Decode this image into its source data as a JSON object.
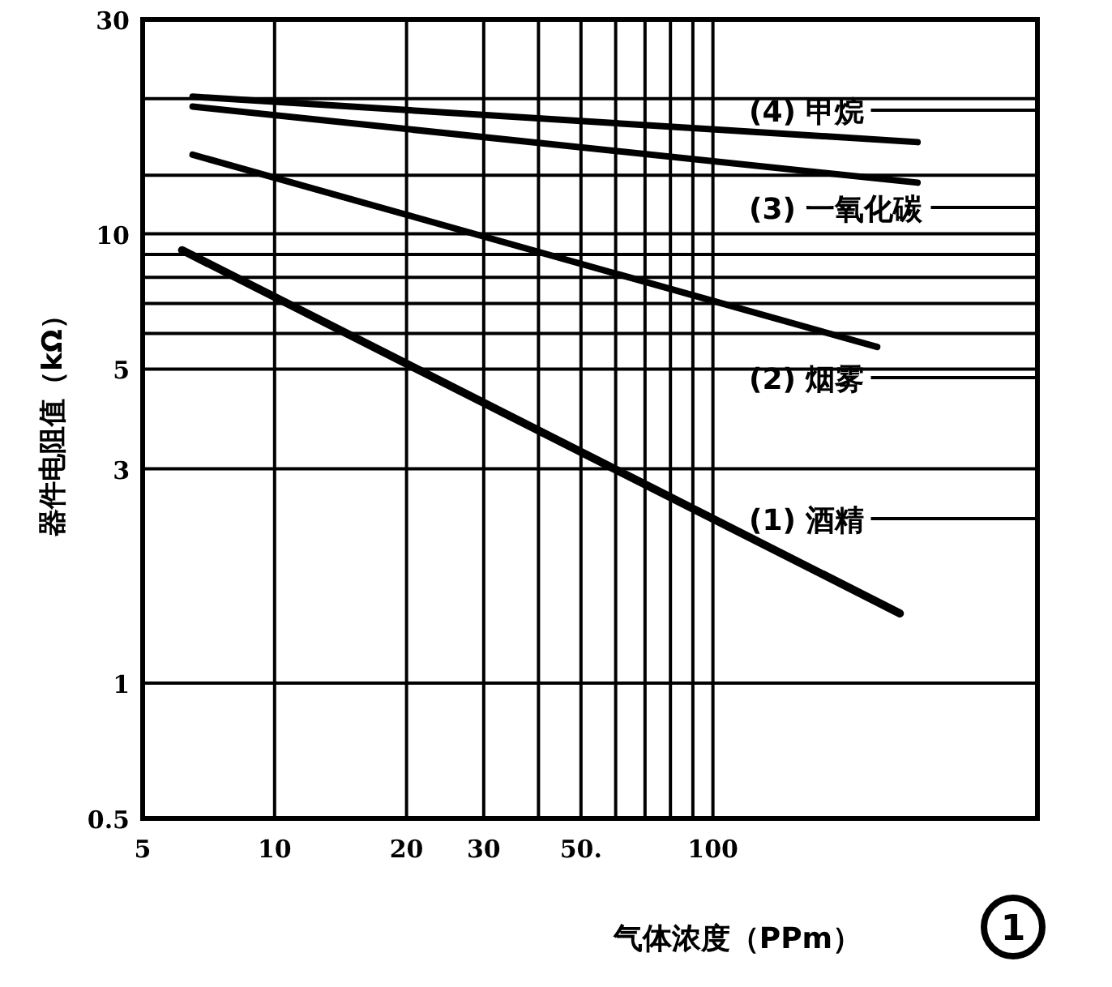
{
  "chart_data": {
    "type": "line",
    "xlabel": "气体浓度（PPm）",
    "ylabel": "器件电阻值（kΩ）",
    "log": "xy",
    "xlim": [
      5,
      550
    ],
    "ylim": [
      0.5,
      30
    ],
    "xticks": [
      5,
      10,
      20,
      30,
      {
        "value": 40,
        "label": null
      },
      {
        "value": 50,
        "label": "50."
      },
      {
        "value": 60,
        "label": null
      },
      {
        "value": 70,
        "label": null
      },
      {
        "value": 80,
        "label": null
      },
      {
        "value": 90,
        "label": null
      },
      100
    ],
    "yticks": [
      0.5,
      1,
      3,
      5,
      {
        "value": 6,
        "label": null
      },
      {
        "value": 7,
        "label": null
      },
      {
        "value": 8,
        "label": null
      },
      {
        "value": 9,
        "label": null
      },
      10,
      {
        "value": 13.5,
        "label": null
      },
      {
        "value": 20,
        "label": null
      },
      30
    ],
    "grid": true,
    "line_style": "solid",
    "legend": "right",
    "series": [
      {
        "name": "(1) 酒精",
        "color": "#000000",
        "x": [
          6.15,
          267
        ],
        "values": [
          9.2,
          1.43
        ]
      },
      {
        "name": "(2) 烟雾",
        "color": "#000000",
        "x": [
          6.5,
          237
        ],
        "values": [
          15,
          5.6
        ]
      },
      {
        "name": "(3) 一氧化碳",
        "color": "#000000",
        "x": [
          6.5,
          293
        ],
        "values": [
          19.2,
          13
        ]
      },
      {
        "name": "(4) 甲烷",
        "color": "#000000",
        "x": [
          6.5,
          293
        ],
        "values": [
          20.2,
          16
        ]
      }
    ],
    "annotations": [
      "1"
    ]
  }
}
